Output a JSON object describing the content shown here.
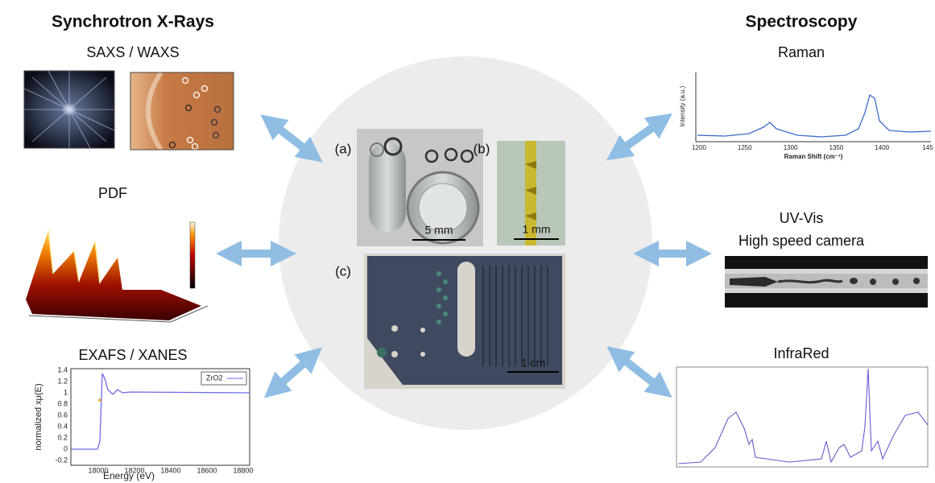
{
  "left_title": "Synchrotron X-Rays",
  "right_title": "Spectroscopy",
  "techniques": {
    "saxs": "SAXS / WAXS",
    "pdf": "PDF",
    "exafs": "EXAFS / XANES",
    "raman": "Raman",
    "uvvis": [
      "UV-Vis",
      "High speed camera"
    ],
    "infrared": "InfraRed"
  },
  "center": {
    "panels": [
      {
        "label": "(a)",
        "scale": "5 mm"
      },
      {
        "label": "(b)",
        "scale": "1 mm"
      },
      {
        "label": "(c)",
        "scale": "1 cm"
      }
    ]
  },
  "exafs_plot": {
    "ylabel": "normalized xμ(E)",
    "xlabel": "Energy    (eV)",
    "legend": "ZrO2",
    "yticks": [
      "1.4",
      "1.2",
      "1",
      "0.8",
      "0.6",
      "0.4",
      "0.2",
      "0",
      "-0.2"
    ],
    "xticks": [
      "18000",
      "18200",
      "18400",
      "18600",
      "18800"
    ]
  },
  "raman_plot": {
    "ylabel": "Intensity (a.u.)",
    "xlabel": "Raman Shift (cm⁻¹)",
    "xticks": [
      "1200",
      "1250",
      "1300",
      "1350",
      "1400",
      "145"
    ]
  }
}
